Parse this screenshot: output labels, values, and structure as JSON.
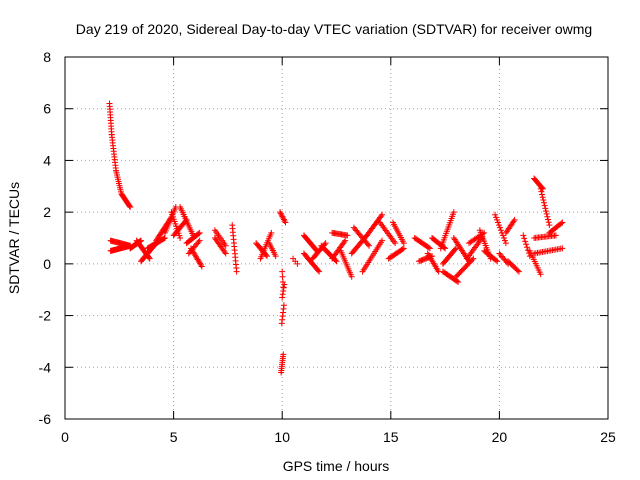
{
  "chart_data": {
    "type": "scatter",
    "title": "Day 219 of 2020, Sidereal Day-to-day VTEC variation (SDTVAR) for receiver owmg",
    "xlabel": "GPS time / hours",
    "ylabel": "SDTVAR / TECUs",
    "xlim": [
      0,
      25
    ],
    "ylim": [
      -6,
      8
    ],
    "xticks": [
      0,
      5,
      10,
      15,
      20,
      25
    ],
    "yticks": [
      -6,
      -4,
      -2,
      0,
      2,
      4,
      6,
      8
    ],
    "grid": true,
    "marker": "+",
    "color": "#ff0000",
    "segments": [
      {
        "x0": 2.05,
        "x1": 2.15,
        "y0": 6.2,
        "y1": 5.0,
        "n": 12
      },
      {
        "x0": 2.15,
        "x1": 2.35,
        "y0": 5.0,
        "y1": 3.6,
        "n": 14
      },
      {
        "x0": 2.35,
        "x1": 2.6,
        "y0": 3.6,
        "y1": 2.7,
        "n": 12
      },
      {
        "x0": 2.6,
        "x1": 3.0,
        "y0": 2.7,
        "y1": 2.2,
        "n": 14
      },
      {
        "x0": 2.1,
        "x1": 3.0,
        "y0": 0.5,
        "y1": 0.7,
        "n": 28
      },
      {
        "x0": 2.1,
        "x1": 3.0,
        "y0": 0.9,
        "y1": 0.7,
        "n": 22
      },
      {
        "x0": 3.0,
        "x1": 3.5,
        "y0": 0.6,
        "y1": 0.9,
        "n": 18
      },
      {
        "x0": 3.3,
        "x1": 3.9,
        "y0": 0.9,
        "y1": 0.2,
        "n": 18
      },
      {
        "x0": 3.5,
        "x1": 4.2,
        "y0": 0.1,
        "y1": 0.8,
        "n": 18
      },
      {
        "x0": 3.8,
        "x1": 4.6,
        "y0": 0.6,
        "y1": 1.0,
        "n": 20
      },
      {
        "x0": 4.2,
        "x1": 4.9,
        "y0": 0.9,
        "y1": 1.8,
        "n": 20
      },
      {
        "x0": 4.6,
        "x1": 5.1,
        "y0": 1.2,
        "y1": 2.2,
        "n": 14
      },
      {
        "x0": 4.9,
        "x1": 5.3,
        "y0": 2.0,
        "y1": 1.0,
        "n": 12
      },
      {
        "x0": 5.0,
        "x1": 5.6,
        "y0": 1.1,
        "y1": 1.7,
        "n": 14
      },
      {
        "x0": 5.3,
        "x1": 5.9,
        "y0": 2.2,
        "y1": 1.1,
        "n": 16
      },
      {
        "x0": 5.6,
        "x1": 6.2,
        "y0": 0.8,
        "y1": 1.2,
        "n": 14
      },
      {
        "x0": 5.8,
        "x1": 6.3,
        "y0": 0.6,
        "y1": -0.1,
        "n": 14
      },
      {
        "x0": 5.7,
        "x1": 6.2,
        "y0": 0.4,
        "y1": 0.9,
        "n": 10
      },
      {
        "x0": 6.9,
        "x1": 7.4,
        "y0": 1.0,
        "y1": 0.4,
        "n": 12
      },
      {
        "x0": 6.9,
        "x1": 7.4,
        "y0": 1.3,
        "y1": 0.7,
        "n": 10
      },
      {
        "x0": 7.7,
        "x1": 7.9,
        "y0": 1.5,
        "y1": -0.3,
        "n": 14
      },
      {
        "x0": 8.8,
        "x1": 9.3,
        "y0": 0.8,
        "y1": 0.3,
        "n": 12
      },
      {
        "x0": 9.0,
        "x1": 9.5,
        "y0": 0.2,
        "y1": 1.2,
        "n": 14
      },
      {
        "x0": 9.4,
        "x1": 9.7,
        "y0": 0.8,
        "y1": 0.3,
        "n": 8
      },
      {
        "x0": 9.9,
        "x1": 10.15,
        "y0": 2.0,
        "y1": 1.6,
        "n": 8
      },
      {
        "x0": 9.95,
        "x1": 10.05,
        "y0": -4.2,
        "y1": -3.5,
        "n": 10
      },
      {
        "x0": 9.98,
        "x1": 10.08,
        "y0": -2.3,
        "y1": -1.6,
        "n": 6
      },
      {
        "x0": 10.0,
        "x1": 10.1,
        "y0": -1.3,
        "y1": -0.8,
        "n": 5
      },
      {
        "x0": 10.0,
        "x1": 10.05,
        "y0": -0.3,
        "y1": -0.9,
        "n": 4
      },
      {
        "x0": 10.5,
        "x1": 10.7,
        "y0": 0.2,
        "y1": 0.0,
        "n": 3
      },
      {
        "x0": 11.0,
        "x1": 11.6,
        "y0": 1.1,
        "y1": 0.5,
        "n": 16
      },
      {
        "x0": 11.0,
        "x1": 11.7,
        "y0": 0.4,
        "y1": -0.3,
        "n": 16
      },
      {
        "x0": 11.4,
        "x1": 12.0,
        "y0": 0.2,
        "y1": 0.8,
        "n": 14
      },
      {
        "x0": 11.8,
        "x1": 12.5,
        "y0": 0.7,
        "y1": 0.1,
        "n": 16
      },
      {
        "x0": 12.3,
        "x1": 12.9,
        "y0": 0.2,
        "y1": 0.9,
        "n": 14
      },
      {
        "x0": 12.3,
        "x1": 13.0,
        "y0": 1.2,
        "y1": 1.1,
        "n": 14
      },
      {
        "x0": 12.7,
        "x1": 13.2,
        "y0": 0.5,
        "y1": -0.5,
        "n": 14
      },
      {
        "x0": 13.2,
        "x1": 13.9,
        "y0": 0.4,
        "y1": 1.1,
        "n": 16
      },
      {
        "x0": 13.3,
        "x1": 14.0,
        "y0": 1.4,
        "y1": 0.7,
        "n": 14
      },
      {
        "x0": 13.9,
        "x1": 14.6,
        "y0": 1.1,
        "y1": 1.9,
        "n": 16
      },
      {
        "x0": 13.7,
        "x1": 14.6,
        "y0": -0.3,
        "y1": 0.9,
        "n": 18
      },
      {
        "x0": 14.5,
        "x1": 15.2,
        "y0": 1.6,
        "y1": 0.8,
        "n": 14
      },
      {
        "x0": 14.9,
        "x1": 15.6,
        "y0": 0.2,
        "y1": 0.6,
        "n": 14
      },
      {
        "x0": 15.1,
        "x1": 15.6,
        "y0": 1.6,
        "y1": 0.8,
        "n": 12
      },
      {
        "x0": 16.1,
        "x1": 16.8,
        "y0": 1.0,
        "y1": 0.6,
        "n": 14
      },
      {
        "x0": 16.3,
        "x1": 16.9,
        "y0": 0.1,
        "y1": 0.3,
        "n": 12
      },
      {
        "x0": 16.7,
        "x1": 17.2,
        "y0": 0.4,
        "y1": -0.3,
        "n": 12
      },
      {
        "x0": 16.9,
        "x1": 17.5,
        "y0": 1.0,
        "y1": 0.6,
        "n": 14
      },
      {
        "x0": 17.3,
        "x1": 17.9,
        "y0": 0.6,
        "y1": 2.0,
        "n": 18
      },
      {
        "x0": 17.4,
        "x1": 18.0,
        "y0": 0.0,
        "y1": 0.6,
        "n": 14
      },
      {
        "x0": 17.4,
        "x1": 18.1,
        "y0": -0.3,
        "y1": -0.7,
        "n": 14
      },
      {
        "x0": 17.9,
        "x1": 18.6,
        "y0": 1.0,
        "y1": 0.1,
        "n": 16
      },
      {
        "x0": 18.0,
        "x1": 18.8,
        "y0": -0.5,
        "y1": 0.2,
        "n": 16
      },
      {
        "x0": 18.5,
        "x1": 19.2,
        "y0": 0.2,
        "y1": 1.0,
        "n": 14
      },
      {
        "x0": 18.6,
        "x1": 19.3,
        "y0": 0.8,
        "y1": 1.2,
        "n": 12
      },
      {
        "x0": 19.1,
        "x1": 19.6,
        "y0": 1.3,
        "y1": 0.2,
        "n": 14
      },
      {
        "x0": 19.3,
        "x1": 19.9,
        "y0": 0.5,
        "y1": 0.1,
        "n": 12
      },
      {
        "x0": 19.8,
        "x1": 20.3,
        "y0": 1.9,
        "y1": 0.8,
        "n": 12
      },
      {
        "x0": 20.0,
        "x1": 20.4,
        "y0": 0.4,
        "y1": 0.0,
        "n": 8
      },
      {
        "x0": 20.3,
        "x1": 20.7,
        "y0": 1.2,
        "y1": 1.7,
        "n": 10
      },
      {
        "x0": 20.4,
        "x1": 20.9,
        "y0": 0.1,
        "y1": -0.3,
        "n": 10
      },
      {
        "x0": 21.1,
        "x1": 21.4,
        "y0": 1.1,
        "y1": 0.3,
        "n": 8
      },
      {
        "x0": 21.4,
        "x1": 21.9,
        "y0": 0.5,
        "y1": -0.4,
        "n": 12
      },
      {
        "x0": 21.6,
        "x1": 22.0,
        "y0": 3.3,
        "y1": 2.9,
        "n": 12
      },
      {
        "x0": 21.9,
        "x1": 22.3,
        "y0": 2.9,
        "y1": 1.5,
        "n": 14
      },
      {
        "x0": 21.6,
        "x1": 22.6,
        "y0": 1.0,
        "y1": 1.1,
        "n": 16
      },
      {
        "x0": 21.6,
        "x1": 22.9,
        "y0": 0.4,
        "y1": 0.6,
        "n": 18
      },
      {
        "x0": 22.3,
        "x1": 22.9,
        "y0": 1.2,
        "y1": 1.6,
        "n": 12
      }
    ]
  }
}
